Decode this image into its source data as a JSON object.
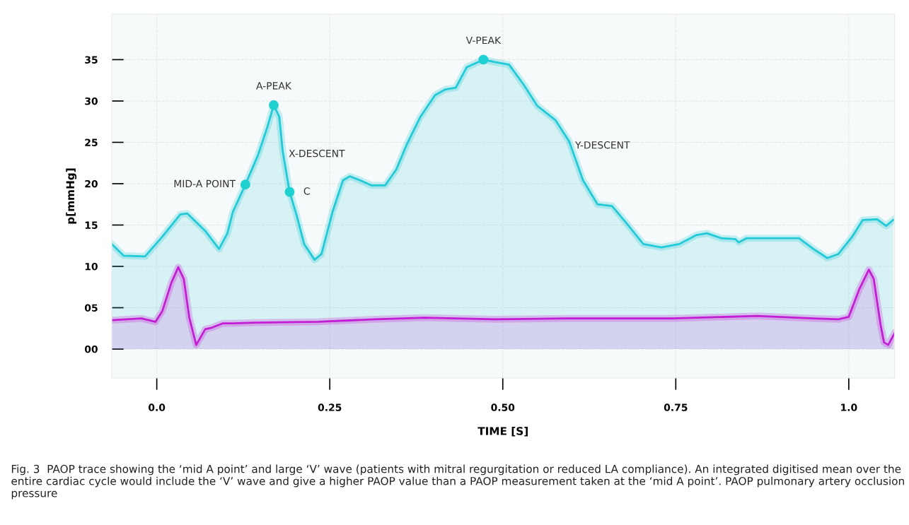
{
  "chart_data": {
    "type": "area",
    "xlabel": "TIME [S]",
    "ylabel": "p[mmHg]",
    "xlim": [
      -0.065,
      1.066
    ],
    "ylim": [
      -3.5,
      40.5
    ],
    "xticks": [
      {
        "value": 0,
        "label": "0.0"
      },
      0.25,
      {
        "value": 0.5,
        "label": "0.50"
      },
      0.75,
      {
        "value": 1.0,
        "label": "1.0"
      }
    ],
    "yticks": [
      {
        "value": 0,
        "label": "00"
      },
      {
        "value": 5,
        "label": "05"
      },
      10,
      15,
      20,
      25,
      30,
      35
    ],
    "grid": true,
    "legend": false,
    "series": [
      {
        "color": "#22c9d6",
        "x": [
          -0.065,
          -0.048,
          -0.017,
          0.008,
          0.034,
          0.044,
          0.07,
          0.09,
          0.102,
          0.11,
          0.128,
          0.146,
          0.16,
          0.169,
          0.177,
          0.182,
          0.192,
          0.202,
          0.213,
          0.228,
          0.238,
          0.254,
          0.269,
          0.279,
          0.294,
          0.31,
          0.33,
          0.346,
          0.361,
          0.381,
          0.402,
          0.417,
          0.432,
          0.448,
          0.472,
          0.489,
          0.509,
          0.53,
          0.55,
          0.576,
          0.596,
          0.616,
          0.637,
          0.658,
          0.678,
          0.703,
          0.729,
          0.755,
          0.78,
          0.795,
          0.816,
          0.836,
          0.841,
          0.852,
          0.928,
          0.949,
          0.969,
          0.985,
          1.005,
          1.02,
          1.041,
          1.054,
          1.064
        ],
        "values": [
          12.7,
          11.3,
          11.2,
          13.6,
          16.3,
          16.4,
          14.3,
          12.1,
          14.0,
          16.6,
          19.9,
          23.4,
          26.9,
          29.5,
          28.1,
          23.9,
          19.0,
          16.2,
          12.7,
          10.8,
          11.5,
          16.6,
          20.4,
          20.9,
          20.4,
          19.8,
          19.8,
          21.7,
          24.7,
          28.1,
          30.7,
          31.4,
          31.6,
          34.1,
          35.0,
          34.7,
          34.4,
          32.0,
          29.4,
          27.7,
          25.1,
          20.4,
          17.5,
          17.3,
          15.3,
          12.7,
          12.3,
          12.7,
          13.8,
          14.0,
          13.4,
          13.3,
          12.9,
          13.4,
          13.4,
          12.1,
          11.0,
          11.5,
          13.6,
          15.6,
          15.7,
          14.9,
          15.6
        ]
      },
      {
        "color": "#c21fd4",
        "x": [
          -0.065,
          -0.022,
          -0.002,
          0.008,
          0.021,
          0.031,
          0.039,
          0.047,
          0.057,
          0.07,
          0.08,
          0.095,
          0.11,
          0.141,
          0.233,
          0.315,
          0.387,
          0.489,
          0.591,
          0.744,
          0.867,
          0.949,
          0.985,
          1.0,
          1.015,
          1.029,
          1.036,
          1.046,
          1.051,
          1.057,
          1.066
        ],
        "values": [
          3.5,
          3.7,
          3.3,
          4.6,
          8.0,
          9.9,
          8.5,
          3.8,
          0.5,
          2.4,
          2.6,
          3.1,
          3.1,
          3.2,
          3.3,
          3.6,
          3.8,
          3.6,
          3.7,
          3.7,
          4.0,
          3.7,
          3.6,
          3.9,
          7.2,
          9.6,
          8.5,
          2.9,
          0.8,
          0.5,
          1.9
        ]
      },
      {
        "type": "scatter",
        "color": "#1fd1d1",
        "marker": "circle",
        "x": [
          0.128,
          0.169,
          0.192,
          0.472
        ],
        "values": [
          19.9,
          29.5,
          19.0,
          35.0
        ]
      }
    ],
    "annotations": [
      {
        "text": "MID-A POINT",
        "x": 0.128,
        "y": 19.9
      },
      {
        "text": "A-PEAK",
        "x": 0.169,
        "y": 29.5
      },
      {
        "text": "C",
        "x": 0.192,
        "y": 19.0
      },
      {
        "text": "V-PEAK",
        "x": 0.472,
        "y": 35.0
      },
      "X-DESCENT",
      "Y-DESCENT",
      "Fig. 3  PAOP trace showing the ‘mid A point’ and large ‘V’ wave (patients with mitral regurgitation or reduced LA compliance). An integrated digitised mean over the entire cardiac cycle would include the ‘V’ wave and give a higher PAOP value than a PAOP measurement taken at the ‘mid A point’. PAOP pulmonary artery occlusion pressure"
    ]
  }
}
